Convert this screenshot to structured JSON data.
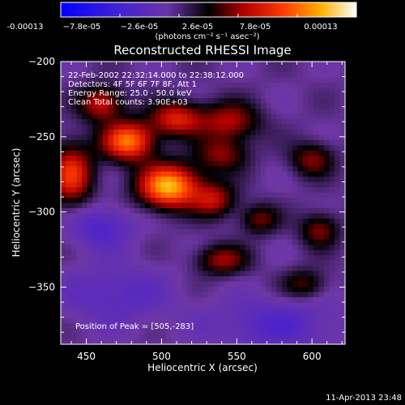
{
  "colorbar": {
    "tick_labels": [
      "-0.00013",
      "−7.8e-05",
      "−2.6e-05",
      "2.6e-05",
      "7.8e-05",
      "0.00013"
    ],
    "unit_label": "(photons cm⁻² s⁻¹ asec⁻²)"
  },
  "plot": {
    "title": "Reconstructed RHESSI Image",
    "info_lines": [
      "22-Feb-2002 22:32:14.000 to 22:38:12.000",
      "Detectors: 4F 5F 6F 7F 8F, Att 1",
      "Energy Range: 25.0 - 50.0 keV",
      "Clean    Total counts: 3.90E+03"
    ],
    "peak_label": "Position of Peak = [505,-283]",
    "timestamp": "11-Apr-2013 23:48"
  },
  "chart_data": {
    "type": "heatmap",
    "title": "Reconstructed RHESSI Image",
    "xlabel": "Heliocentric X (arcsec)",
    "ylabel": "Heliocentric Y (arcsec)",
    "xlim": [
      433,
      622
    ],
    "ylim": [
      -388,
      -200
    ],
    "x_ticks": [
      450,
      500,
      550,
      600
    ],
    "y_ticks": [
      -200,
      -250,
      -300,
      -350
    ],
    "x_tick_labels": [
      "450",
      "500",
      "550",
      "600"
    ],
    "y_tick_labels": [
      "−200",
      "−250",
      "−300",
      "−350"
    ],
    "colorbar_range": [
      -0.00013,
      0.00013
    ],
    "colorbar_ticks": [
      -0.00013,
      -7.8e-05,
      -2.6e-05,
      2.6e-05,
      7.8e-05,
      0.00013
    ],
    "grid": false,
    "peak": {
      "x": 505,
      "y": -283
    },
    "sources": [
      {
        "x": 505,
        "y": -283,
        "sx": 14,
        "sy": 10,
        "value": 0.00013
      },
      {
        "x": 478,
        "y": -253,
        "sx": 12,
        "sy": 9,
        "value": 0.00011
      },
      {
        "x": 440,
        "y": -275,
        "sx": 10,
        "sy": 14,
        "value": 8.5e-05
      },
      {
        "x": 460,
        "y": -228,
        "sx": 10,
        "sy": 8,
        "value": 7e-05
      },
      {
        "x": 510,
        "y": -238,
        "sx": 12,
        "sy": 8,
        "value": 7.5e-05
      },
      {
        "x": 545,
        "y": -240,
        "sx": 14,
        "sy": 9,
        "value": 6e-05
      },
      {
        "x": 540,
        "y": -262,
        "sx": 12,
        "sy": 8,
        "value": 5e-05
      },
      {
        "x": 535,
        "y": -292,
        "sx": 10,
        "sy": 8,
        "value": 6e-05
      },
      {
        "x": 600,
        "y": -265,
        "sx": 10,
        "sy": 8,
        "value": 5e-05
      },
      {
        "x": 565,
        "y": -305,
        "sx": 9,
        "sy": 7,
        "value": 4.5e-05
      },
      {
        "x": 605,
        "y": -312,
        "sx": 9,
        "sy": 8,
        "value": 5e-05
      },
      {
        "x": 540,
        "y": -332,
        "sx": 12,
        "sy": 7,
        "value": 5.5e-05
      },
      {
        "x": 595,
        "y": -348,
        "sx": 10,
        "sy": 7,
        "value": 4e-05
      },
      {
        "x": 460,
        "y": -310,
        "sx": 14,
        "sy": 10,
        "value": -4e-05
      },
      {
        "x": 575,
        "y": -375,
        "sx": 30,
        "sy": 12,
        "value": -3.5e-05
      },
      {
        "x": 470,
        "y": -355,
        "sx": 25,
        "sy": 14,
        "value": -3e-05
      }
    ]
  }
}
